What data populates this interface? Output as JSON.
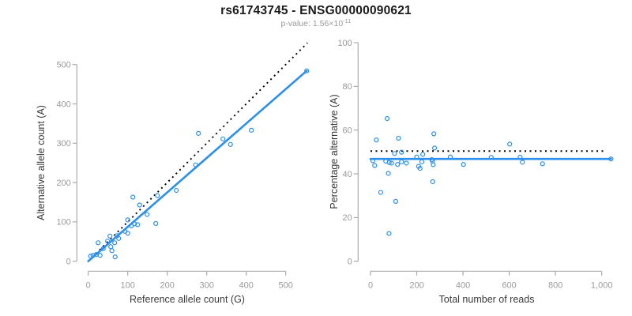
{
  "header": {
    "title": "rs61743745 - ENSG00000090621",
    "pvalue_label": "p-value:",
    "pvalue_mantissa": "1.56",
    "pvalue_times": "×10",
    "pvalue_exponent": "-11"
  },
  "colors": {
    "accent_blue": "#2B8FEE",
    "dotted_line": "#000000",
    "axis_line": "#ababab",
    "tick_label": "#9a9a9a",
    "axis_title": "#3a3a3a",
    "title_text": "#1a1a1a",
    "subtitle_text": "#9a9a9a"
  },
  "chart_data": [
    {
      "id": "allele-counts",
      "type": "scatter",
      "xlabel": "Reference allele count (G)",
      "ylabel": "Alternative allele count (A)",
      "xlim": [
        0,
        560
      ],
      "ylim": [
        0,
        560
      ],
      "grid": false,
      "legend": "none",
      "xticks": [
        0,
        100,
        200,
        300,
        400,
        500
      ],
      "xtick_labels": [
        "0",
        "100",
        "200",
        "300",
        "400",
        "500"
      ],
      "yticks": [
        0,
        100,
        200,
        300,
        400,
        500
      ],
      "ytick_labels": [
        "0",
        "100",
        "200",
        "300",
        "400",
        "500"
      ],
      "lines": [
        {
          "name": "identity-line",
          "style": "dotted",
          "color": "#000000",
          "points": [
            [
              10,
              10
            ],
            [
              555,
              555
            ]
          ]
        },
        {
          "name": "regression-line",
          "style": "solid",
          "color": "#2B8FEE",
          "points": [
            [
              0,
              0
            ],
            [
              553,
              484
            ]
          ]
        }
      ],
      "points": [
        [
          6,
          13
        ],
        [
          12,
          15
        ],
        [
          20,
          17
        ],
        [
          30,
          15
        ],
        [
          25,
          47
        ],
        [
          38,
          32
        ],
        [
          49,
          51
        ],
        [
          55,
          64
        ],
        [
          57,
          37
        ],
        [
          60,
          27
        ],
        [
          67,
          47
        ],
        [
          68,
          11
        ],
        [
          73,
          65
        ],
        [
          77,
          58
        ],
        [
          93,
          76
        ],
        [
          100,
          71
        ],
        [
          100,
          105
        ],
        [
          109,
          90
        ],
        [
          117,
          95
        ],
        [
          125,
          93
        ],
        [
          149,
          119
        ],
        [
          171,
          96
        ],
        [
          113,
          163
        ],
        [
          130,
          143
        ],
        [
          175,
          167
        ],
        [
          223,
          180
        ],
        [
          272,
          245
        ],
        [
          279,
          325
        ],
        [
          341,
          311
        ],
        [
          360,
          297
        ],
        [
          413,
          333
        ],
        [
          553,
          484
        ]
      ]
    },
    {
      "id": "percentage-alternative",
      "type": "scatter",
      "xlabel": "Total number of reads",
      "ylabel": "Percentage alternative (A)",
      "xlim": [
        0,
        1060
      ],
      "ylim": [
        0,
        100
      ],
      "grid": false,
      "legend": "none",
      "xticks": [
        0,
        200,
        400,
        600,
        800,
        1000
      ],
      "xtick_labels": [
        "0",
        "200",
        "400",
        "600",
        "800",
        "1,000"
      ],
      "yticks": [
        0,
        20,
        40,
        60,
        80,
        100
      ],
      "ytick_labels": [
        "0",
        "20",
        "40",
        "60",
        "80",
        "100"
      ],
      "lines": [
        {
          "name": "expected-percentage-line",
          "style": "dotted",
          "color": "#000000",
          "points": [
            [
              0,
              50.4
            ],
            [
              1020,
              50.4
            ]
          ]
        },
        {
          "name": "fitted-percentage-line",
          "style": "solid",
          "color": "#2B8FEE",
          "points": [
            [
              0,
              46.8
            ],
            [
              1040,
              46.8
            ]
          ]
        }
      ],
      "points": [
        [
          10,
          46
        ],
        [
          18,
          43.8
        ],
        [
          25,
          55.5
        ],
        [
          44,
          31.5
        ],
        [
          66,
          45.8
        ],
        [
          72,
          65.3
        ],
        [
          77,
          40.2
        ],
        [
          80,
          12.7
        ],
        [
          81,
          45.2
        ],
        [
          91,
          44.9
        ],
        [
          104,
          49.3
        ],
        [
          109,
          27.4
        ],
        [
          117,
          44.3
        ],
        [
          121,
          56.3
        ],
        [
          134,
          49.9
        ],
        [
          134,
          45.5
        ],
        [
          155,
          44.9
        ],
        [
          200,
          47.7
        ],
        [
          208,
          43.4
        ],
        [
          214,
          42.5
        ],
        [
          222,
          45.5
        ],
        [
          226,
          48.9
        ],
        [
          265,
          46.5
        ],
        [
          268,
          45.8
        ],
        [
          271,
          44.2
        ],
        [
          274,
          58.3
        ],
        [
          277,
          51.8
        ],
        [
          269,
          36.4
        ],
        [
          345,
          47.7
        ],
        [
          402,
          44.3
        ],
        [
          522,
          47.5
        ],
        [
          602,
          53.6
        ],
        [
          647,
          47.6
        ],
        [
          657,
          45.3
        ],
        [
          744,
          44.6
        ],
        [
          1040,
          46.8
        ]
      ]
    }
  ]
}
